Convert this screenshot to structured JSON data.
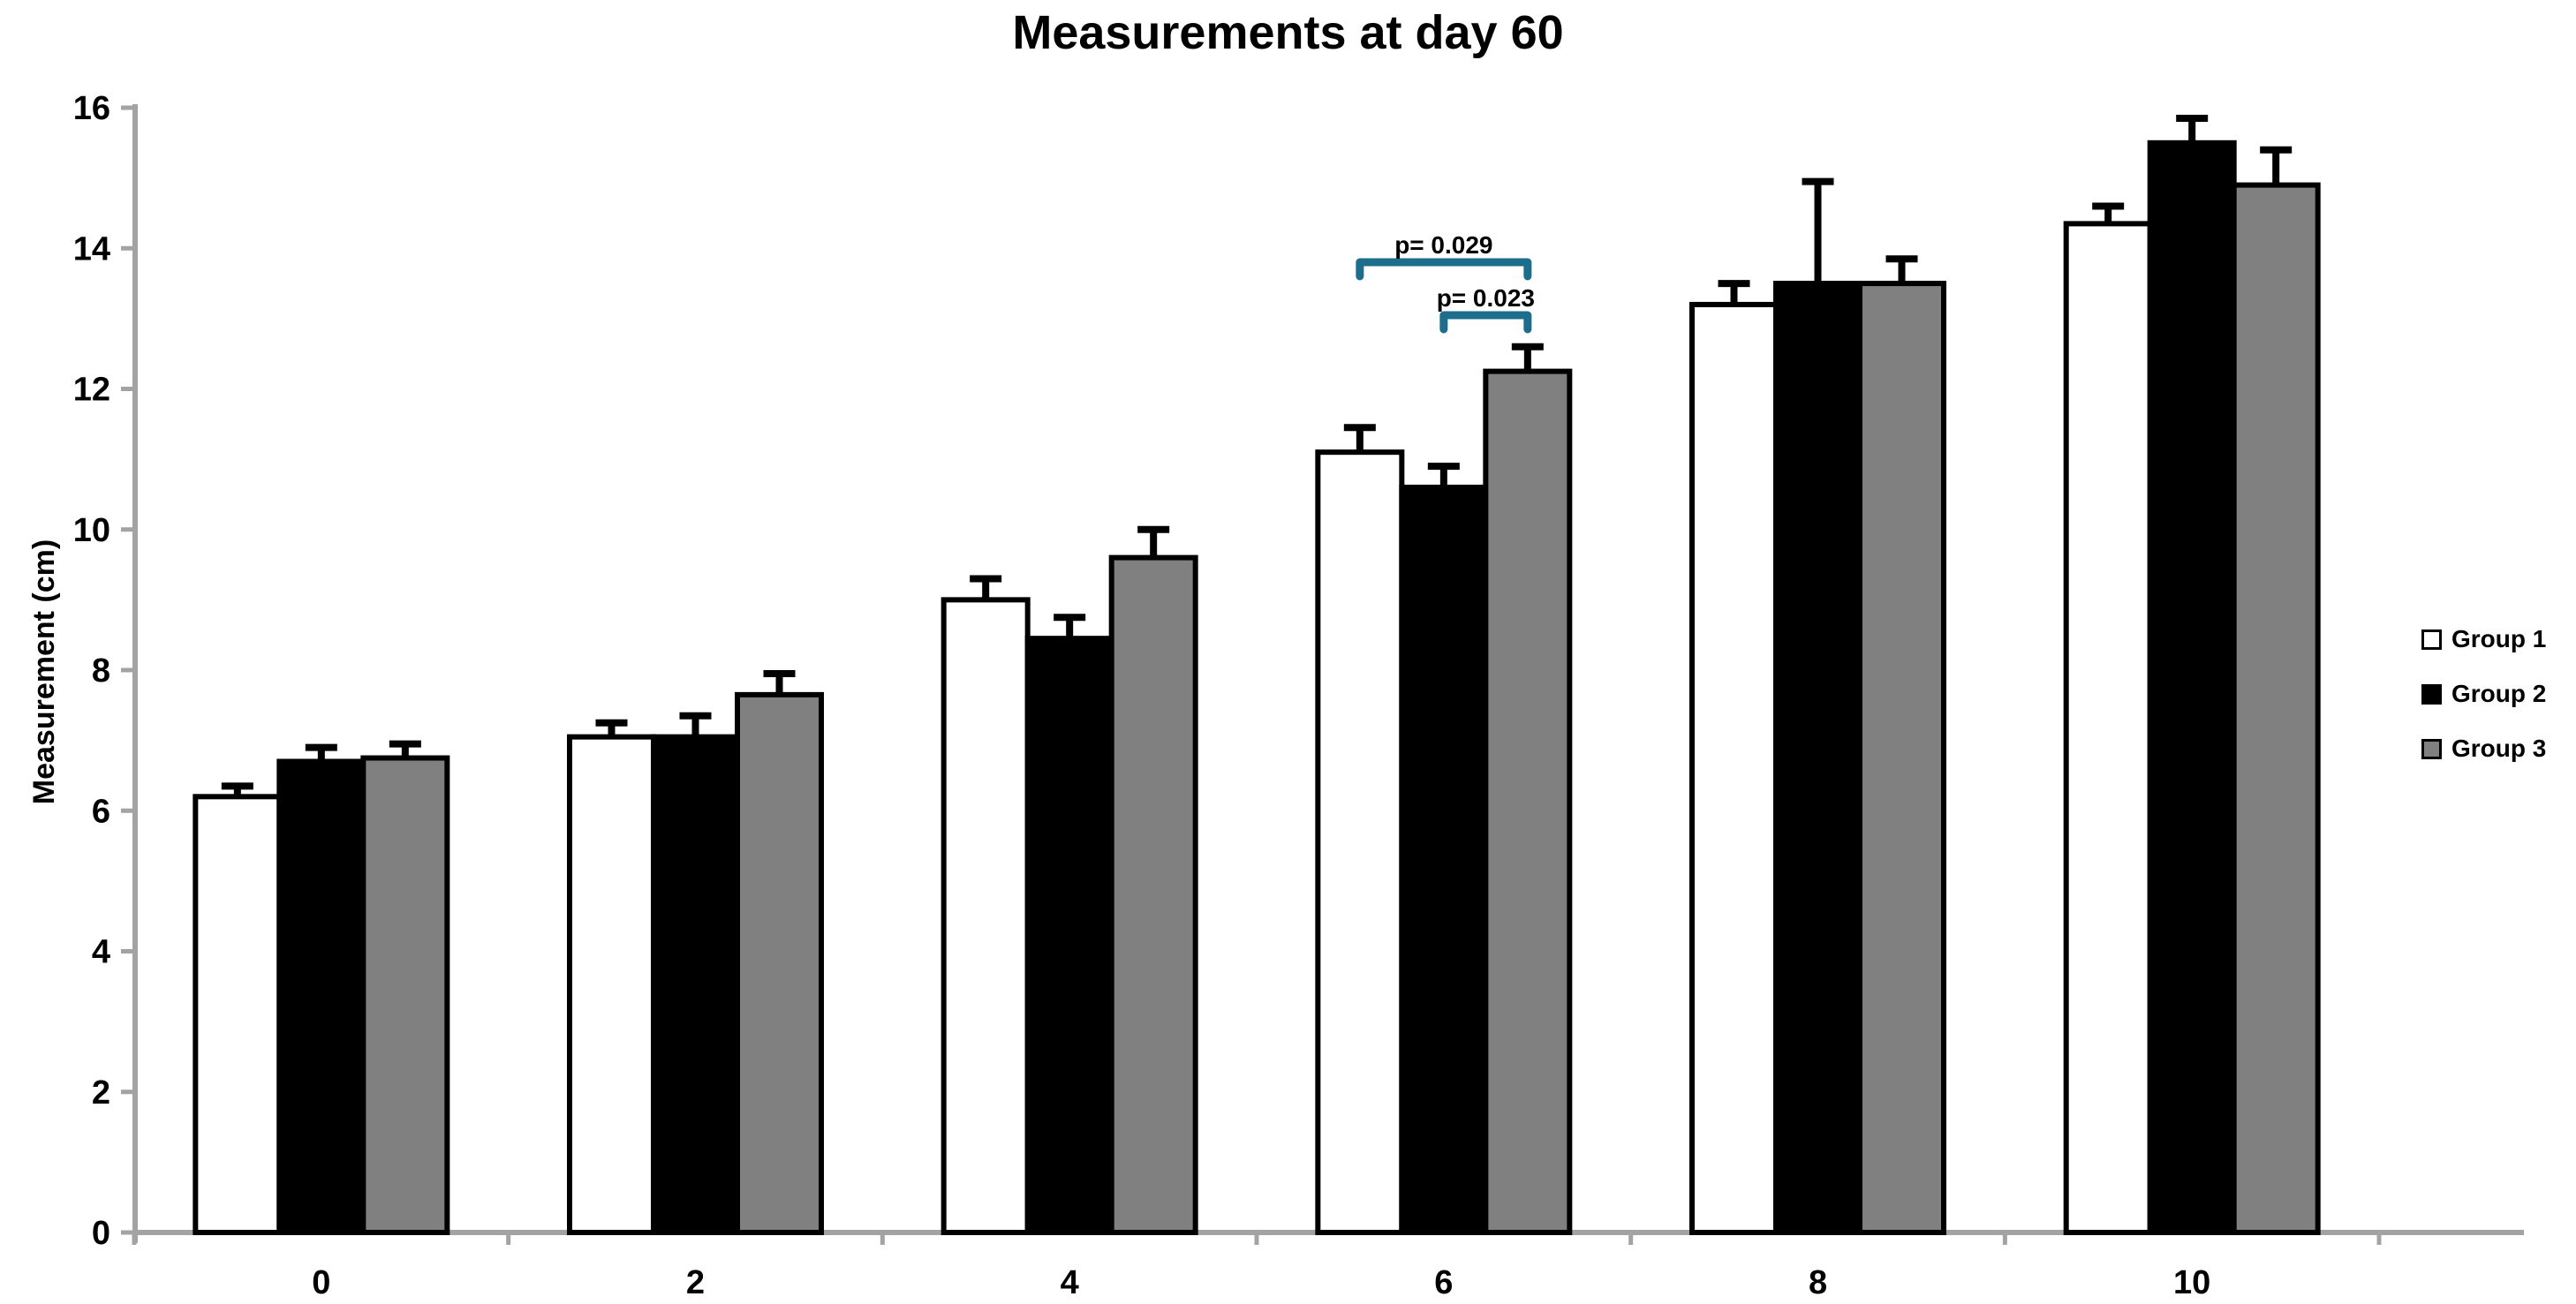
{
  "title": "Measurements at day 60",
  "chart_data": {
    "type": "bar",
    "title": "Measurements at day 60",
    "xlabel": "",
    "ylabel": "Measurement (cm)",
    "categories": [
      "0",
      "2",
      "4",
      "6",
      "8",
      "10"
    ],
    "series": [
      {
        "name": "Group 1",
        "fill": "#FFFFFF",
        "values": [
          6.2,
          7.05,
          9.0,
          11.1,
          13.2,
          14.35
        ],
        "errors_plus": [
          0.15,
          0.2,
          0.3,
          0.35,
          0.3,
          0.25
        ]
      },
      {
        "name": "Group 2",
        "fill": "#000000",
        "values": [
          6.7,
          7.05,
          8.45,
          10.6,
          13.5,
          15.5
        ],
        "errors_plus": [
          0.2,
          0.3,
          0.3,
          0.3,
          1.45,
          0.35
        ]
      },
      {
        "name": "Group 3",
        "fill": "#808080",
        "values": [
          6.75,
          7.65,
          9.6,
          12.25,
          13.5,
          14.9
        ],
        "errors_plus": [
          0.2,
          0.3,
          0.4,
          0.35,
          0.35,
          0.5
        ]
      }
    ],
    "ylim": [
      0,
      16
    ],
    "yticks": [
      0,
      2,
      4,
      6,
      8,
      10,
      12,
      14,
      16
    ],
    "grid": false,
    "legend_position": "right",
    "bar_border_color": "#000000",
    "error_bar_color": "#000000",
    "axis_color": "#A3A3A3",
    "annotations": [
      {
        "label": "p= 0.029",
        "category_index": 3,
        "from_series": 0,
        "to_series": 2,
        "color": "#1C6E8C"
      },
      {
        "label": "p= 0.023",
        "category_index": 3,
        "from_series": 1,
        "to_series": 2,
        "color": "#1C6E8C"
      }
    ]
  }
}
